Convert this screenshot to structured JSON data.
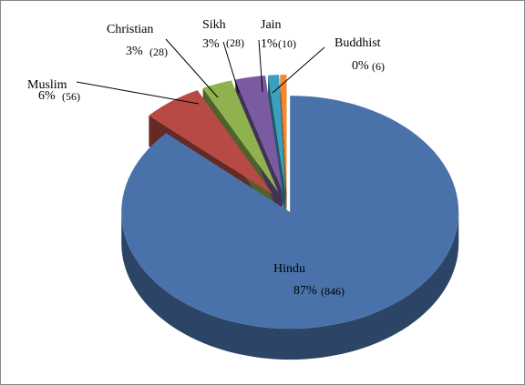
{
  "chart_data": {
    "type": "pie",
    "categories": [
      "Hindu",
      "Muslim",
      "Christian",
      "Sikh",
      "Jain",
      "Buddhist"
    ],
    "values": [
      87,
      6,
      3,
      3,
      1,
      0
    ],
    "value_labels": [
      "87%",
      "6%",
      "3%",
      "3%",
      "1%",
      "0%"
    ],
    "counts": [
      846,
      56,
      28,
      28,
      10,
      6
    ],
    "count_labels": [
      "(846)",
      "(56)",
      "(28)",
      "(28)",
      "(10)",
      "(6)"
    ],
    "colors": [
      "#4a72aa",
      "#b84a45",
      "#8fb24f",
      "#7a5aa0",
      "#3aa0c0",
      "#f08a30"
    ]
  }
}
